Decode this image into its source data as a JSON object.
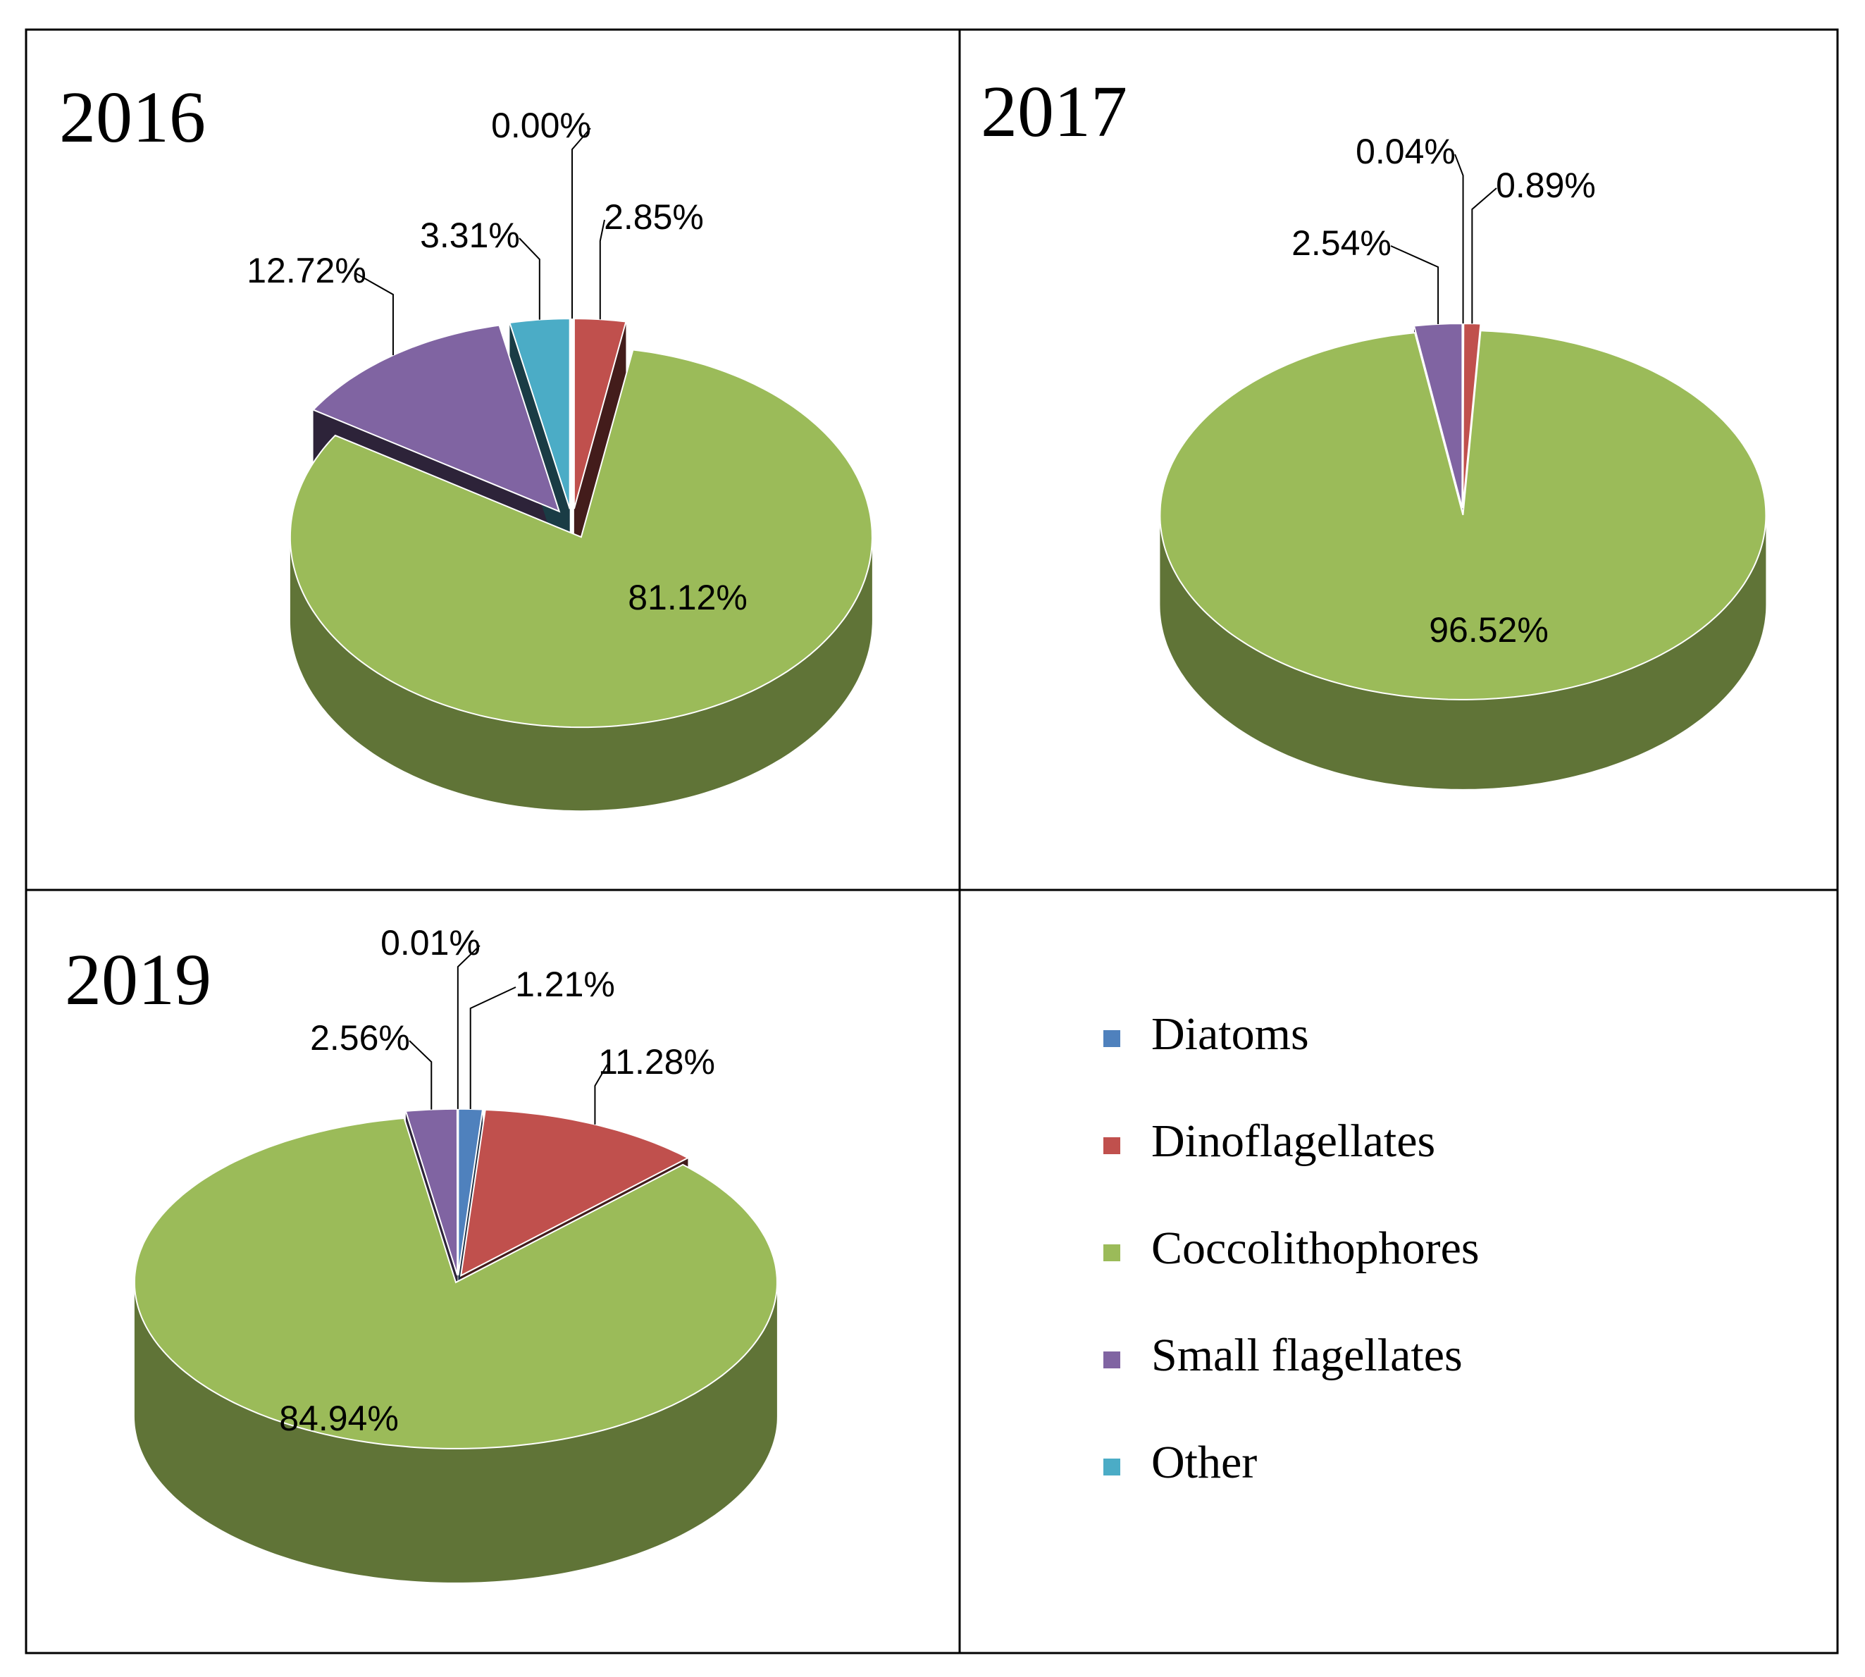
{
  "legend": {
    "labels": [
      "Diatoms",
      "Dinoflagellates",
      "Coccolithophores",
      "Small flagellates",
      "Other"
    ],
    "colors": [
      "#4f81bd",
      "#c0504d",
      "#9bbb59",
      "#8064a2",
      "#4bacc6"
    ]
  },
  "chart_data": [
    {
      "type": "pie",
      "title": "2016",
      "categories": [
        "Diatoms",
        "Dinoflagellates",
        "Coccolithophores",
        "Small flagellates",
        "Other"
      ],
      "values": [
        0,
        2.85,
        81.12,
        12.72,
        3.31
      ],
      "value_labels": [
        "0.00%",
        "2.85%",
        "81.12%",
        "12.72%",
        "3.31%"
      ]
    },
    {
      "type": "pie",
      "title": "2017",
      "categories": [
        "Diatoms",
        "Dinoflagellates",
        "Coccolithophores",
        "Small flagellates"
      ],
      "values": [
        0.04,
        0.89,
        96.52,
        2.54
      ],
      "value_labels": [
        "0.04%",
        "0.89%",
        "96.52%",
        "2.54%"
      ]
    },
    {
      "type": "pie",
      "title": "2019",
      "categories": [
        "Diatoms",
        "Dinoflagellates",
        "Coccolithophores",
        "Small flagellates",
        "Other"
      ],
      "values": [
        1.21,
        11.28,
        84.94,
        2.56,
        0.01
      ],
      "value_labels": [
        "1.21%",
        "11.28%",
        "84.94%",
        "2.56%",
        "0.01%"
      ]
    }
  ]
}
